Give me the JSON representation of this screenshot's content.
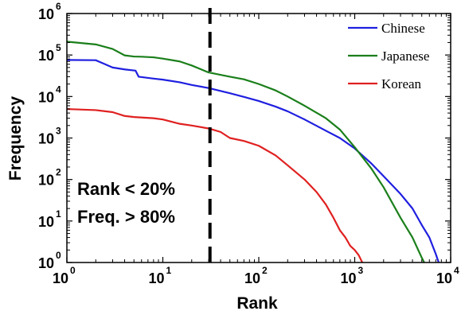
{
  "chart_data": {
    "type": "line",
    "title": "",
    "xlabel": "Rank",
    "ylabel": "Frequency",
    "x_scale": "log",
    "y_scale": "log",
    "xlim": [
      1,
      10000
    ],
    "ylim": [
      1,
      1000000
    ],
    "grid": false,
    "legend_position": "top-right",
    "x_ticks": [
      {
        "base": "10",
        "exp": "0",
        "value": 1
      },
      {
        "base": "10",
        "exp": "1",
        "value": 10
      },
      {
        "base": "10",
        "exp": "2",
        "value": 100
      },
      {
        "base": "10",
        "exp": "3",
        "value": 1000
      },
      {
        "base": "10",
        "exp": "4",
        "value": 10000
      }
    ],
    "y_ticks": [
      {
        "base": "10",
        "exp": "0",
        "value": 1
      },
      {
        "base": "10",
        "exp": "1",
        "value": 10
      },
      {
        "base": "10",
        "exp": "2",
        "value": 100
      },
      {
        "base": "10",
        "exp": "3",
        "value": 1000
      },
      {
        "base": "10",
        "exp": "4",
        "value": 10000
      },
      {
        "base": "10",
        "exp": "5",
        "value": 100000
      },
      {
        "base": "10",
        "exp": "6",
        "value": 1000000
      }
    ],
    "series": [
      {
        "name": "Chinese",
        "color": "#1f1fe0",
        "points": [
          [
            1,
            76000
          ],
          [
            2,
            75000
          ],
          [
            2.5,
            60000
          ],
          [
            3,
            50000
          ],
          [
            4,
            45000
          ],
          [
            5.2,
            42000
          ],
          [
            5.6,
            30000
          ],
          [
            8,
            27000
          ],
          [
            10,
            25500
          ],
          [
            15,
            22000
          ],
          [
            20,
            19000
          ],
          [
            30,
            16000
          ],
          [
            50,
            12000
          ],
          [
            70,
            9800
          ],
          [
            100,
            7800
          ],
          [
            150,
            5700
          ],
          [
            200,
            4400
          ],
          [
            300,
            2800
          ],
          [
            500,
            1500
          ],
          [
            700,
            1000
          ],
          [
            1000,
            560
          ],
          [
            1500,
            240
          ],
          [
            2000,
            120
          ],
          [
            3000,
            45
          ],
          [
            4000,
            20
          ],
          [
            5000,
            8
          ],
          [
            6000,
            4
          ],
          [
            7000,
            1.6
          ],
          [
            7500,
            1
          ]
        ]
      },
      {
        "name": "Japanese",
        "color": "#1a7f1a",
        "points": [
          [
            1,
            210000
          ],
          [
            2,
            180000
          ],
          [
            3,
            140000
          ],
          [
            4,
            98000
          ],
          [
            5,
            92000
          ],
          [
            6,
            91000
          ],
          [
            8,
            88000
          ],
          [
            10,
            82000
          ],
          [
            15,
            70000
          ],
          [
            20,
            56000
          ],
          [
            30,
            38000
          ],
          [
            50,
            30000
          ],
          [
            70,
            26000
          ],
          [
            100,
            20000
          ],
          [
            150,
            14000
          ],
          [
            200,
            10000
          ],
          [
            300,
            6000
          ],
          [
            500,
            3000
          ],
          [
            700,
            1600
          ],
          [
            1000,
            600
          ],
          [
            1500,
            180
          ],
          [
            2000,
            65
          ],
          [
            3000,
            12
          ],
          [
            4000,
            4
          ],
          [
            5000,
            1.3
          ],
          [
            5300,
            1
          ]
        ]
      },
      {
        "name": "Korean",
        "color": "#e02020",
        "points": [
          [
            1,
            5000
          ],
          [
            2,
            4700
          ],
          [
            3,
            4200
          ],
          [
            4,
            3400
          ],
          [
            5,
            3200
          ],
          [
            8,
            3000
          ],
          [
            10,
            2800
          ],
          [
            15,
            2200
          ],
          [
            20,
            2000
          ],
          [
            30,
            1700
          ],
          [
            40,
            1400
          ],
          [
            50,
            1000
          ],
          [
            70,
            850
          ],
          [
            100,
            650
          ],
          [
            150,
            380
          ],
          [
            200,
            220
          ],
          [
            300,
            100
          ],
          [
            400,
            50
          ],
          [
            500,
            25
          ],
          [
            600,
            12
          ],
          [
            700,
            6
          ],
          [
            800,
            4
          ],
          [
            900,
            2.5
          ],
          [
            1000,
            2
          ],
          [
            1100,
            1.5
          ],
          [
            1200,
            1
          ]
        ]
      }
    ],
    "reference_line": {
      "x": 31,
      "style": "dashed"
    },
    "annotation_lines": [
      "Rank < 20%",
      "Freq. > 80%"
    ]
  }
}
